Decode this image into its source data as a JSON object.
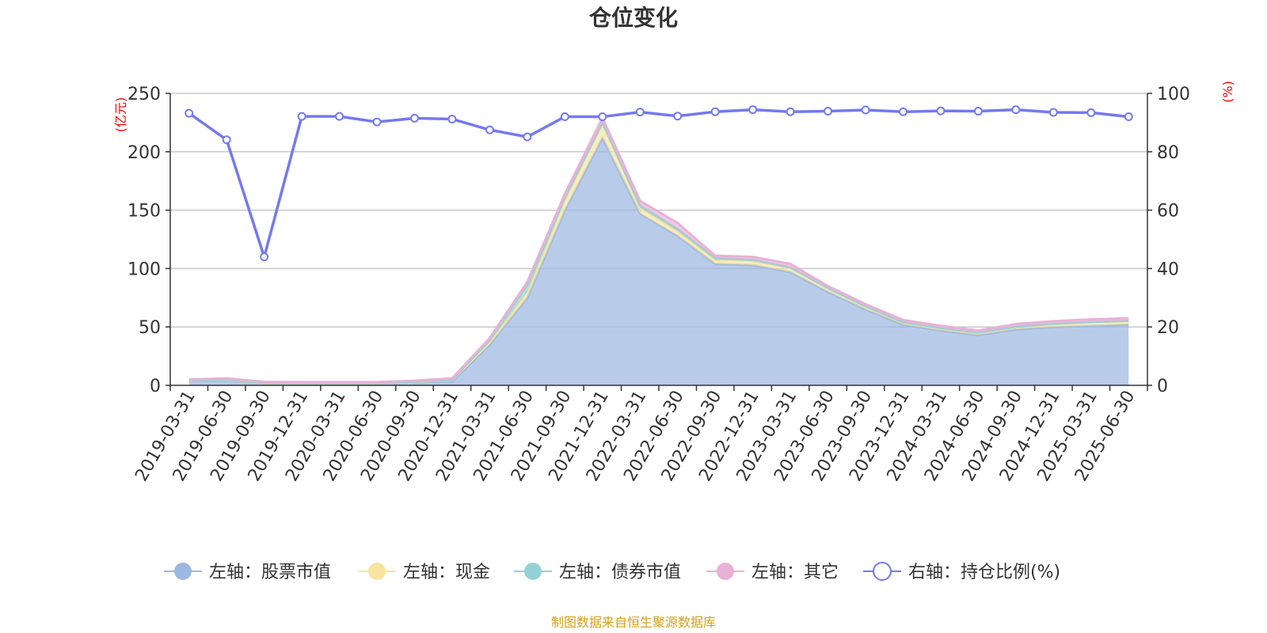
{
  "chart_data": {
    "type": "area",
    "title": "仓位变化",
    "left_unit": "(亿元)",
    "right_unit": "(%)",
    "left_ylim": [
      0,
      250
    ],
    "left_ticks": [
      0,
      50,
      100,
      150,
      200,
      250
    ],
    "right_ylim": [
      0,
      100
    ],
    "right_ticks": [
      0,
      20,
      40,
      60,
      80,
      100
    ],
    "grid": true,
    "legend_position": "bottom",
    "categories": [
      "2019-03-31",
      "2019-06-30",
      "2019-09-30",
      "2019-12-31",
      "2020-03-31",
      "2020-06-30",
      "2020-09-30",
      "2020-12-31",
      "2021-03-31",
      "2021-06-30",
      "2021-09-30",
      "2021-12-31",
      "2022-03-31",
      "2022-06-30",
      "2022-09-30",
      "2022-12-31",
      "2023-03-31",
      "2023-06-30",
      "2023-09-30",
      "2023-12-31",
      "2024-03-31",
      "2024-06-30",
      "2024-09-30",
      "2024-12-31",
      "2025-03-31",
      "2025-06-30"
    ],
    "series": [
      {
        "name": "左轴：股票市值",
        "axis": "left",
        "stacked": true,
        "color": "#9db8e0",
        "values": [
          3.5,
          4.0,
          1.5,
          1.5,
          1.5,
          1.5,
          2.5,
          3.5,
          35,
          75,
          150,
          212,
          147,
          128,
          104,
          103,
          97,
          80,
          65,
          52,
          47,
          43,
          48,
          50,
          51,
          52
        ]
      },
      {
        "name": "左轴：现金",
        "axis": "left",
        "stacked": true,
        "color": "#f9e49f",
        "values": [
          0.5,
          0.5,
          0.3,
          0.3,
          0.3,
          0.3,
          0.4,
          1.0,
          2.0,
          5.0,
          8.0,
          12.0,
          5.0,
          4.0,
          3.5,
          3.5,
          3.5,
          3.0,
          2.5,
          2.0,
          2.0,
          2.0,
          2.0,
          2.5,
          3.0,
          3.0
        ]
      },
      {
        "name": "左轴：债券市值",
        "axis": "left",
        "stacked": true,
        "color": "#93d3d6",
        "values": [
          0.2,
          0.2,
          0.2,
          0.2,
          0.2,
          0.2,
          0.2,
          0.3,
          2.0,
          6.0,
          3.0,
          1.0,
          2.0,
          2.0,
          1.5,
          1.0,
          0.5,
          0.3,
          0.3,
          0.2,
          0.2,
          0.2,
          0.3,
          0.3,
          0.3,
          0.3
        ]
      },
      {
        "name": "左轴：其它",
        "axis": "left",
        "stacked": true,
        "color": "#e9b1d6",
        "values": [
          0.8,
          1.3,
          1.0,
          0.8,
          0.8,
          0.8,
          0.9,
          1.2,
          1.5,
          2.5,
          3.0,
          4.0,
          4.0,
          5.0,
          2.0,
          2.5,
          3.0,
          1.7,
          1.7,
          1.8,
          1.8,
          1.8,
          2.2,
          2.2,
          2.2,
          2.2
        ]
      },
      {
        "name": "右轴：持仓比例(%)",
        "axis": "right",
        "color": "#7479f0",
        "values": [
          93.2,
          84.1,
          44.0,
          92.1,
          92.1,
          90.2,
          91.5,
          91.2,
          87.5,
          85.1,
          92.0,
          92.0,
          93.6,
          92.2,
          93.7,
          94.4,
          93.7,
          93.9,
          94.3,
          93.7,
          94.0,
          93.9,
          94.4,
          93.5,
          93.4,
          92.0
        ]
      }
    ],
    "source_note": "制图数据来自恒生聚源数据库"
  }
}
